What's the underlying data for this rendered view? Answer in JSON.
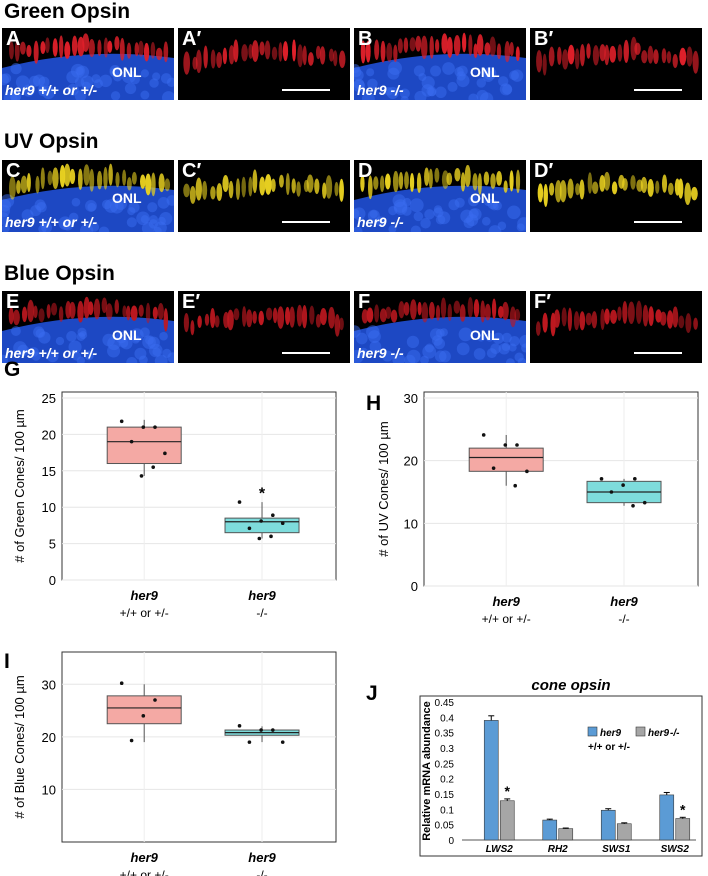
{
  "sections": [
    {
      "title": "Green Opsin"
    },
    {
      "title": "UV Opsin"
    },
    {
      "title": "Blue Opsin"
    }
  ],
  "micro": {
    "onl_label": "ONL",
    "control_genotype": "her9 +/+ or +/-",
    "mutant_genotype": "her9 -/-",
    "panels": [
      {
        "label": "A",
        "stain": "#e0202a"
      },
      {
        "label": "A′",
        "stain": "#e0202a"
      },
      {
        "label": "B",
        "stain": "#e0202a"
      },
      {
        "label": "B′",
        "stain": "#e0202a"
      },
      {
        "label": "C",
        "stain": "#e8d020"
      },
      {
        "label": "C′",
        "stain": "#e8d020"
      },
      {
        "label": "D",
        "stain": "#e8d020"
      },
      {
        "label": "D′",
        "stain": "#e8d020"
      },
      {
        "label": "E",
        "stain": "#c01820"
      },
      {
        "label": "E′",
        "stain": "#c01820"
      },
      {
        "label": "F",
        "stain": "#c01820"
      },
      {
        "label": "F′",
        "stain": "#c01820"
      }
    ],
    "nuclei_color": "#2050d8"
  },
  "chart_data": [
    {
      "panel": "G",
      "type": "box",
      "ylabel": "# of Green Cones/ 100 µm",
      "ylim": [
        0,
        25
      ],
      "yticks": [
        0,
        5,
        10,
        15,
        20,
        25
      ],
      "categories": [
        [
          "her9",
          "+/+ or +/-"
        ],
        [
          "her9",
          "-/-"
        ]
      ],
      "boxes": [
        {
          "whisker_low": 14.3,
          "q1": 16,
          "median": 19,
          "q3": 21,
          "whisker_high": 22,
          "color": "#f4a9a4",
          "points": [
            21.8,
            21,
            21,
            19,
            17.4,
            15.5,
            14.3
          ]
        },
        {
          "whisker_low": 5.7,
          "q1": 6.5,
          "median": 8,
          "q3": 8.5,
          "whisker_high": 10.7,
          "color": "#7edcdc",
          "points": [
            10.7,
            8.9,
            8.1,
            7.1,
            7.8,
            6,
            5.7
          ]
        }
      ],
      "annotations": [
        {
          "text": "*",
          "category": 1,
          "y": 12
        }
      ],
      "grid": true
    },
    {
      "panel": "H",
      "type": "box",
      "ylabel": "# of UV Cones/ 100 µm",
      "ylim": [
        0,
        30
      ],
      "yticks": [
        0,
        10,
        20,
        30
      ],
      "categories": [
        [
          "her9",
          "+/+ or +/-"
        ],
        [
          "her9",
          "-/-"
        ]
      ],
      "boxes": [
        {
          "whisker_low": 16,
          "q1": 18.3,
          "median": 20.5,
          "q3": 22,
          "whisker_high": 24.1,
          "color": "#f4a9a4",
          "points": [
            24.1,
            22.5,
            22.5,
            18.8,
            18.3,
            16
          ]
        },
        {
          "whisker_low": 12.8,
          "q1": 13.3,
          "median": 15,
          "q3": 16.7,
          "whisker_high": 17.1,
          "color": "#7edcdc",
          "points": [
            17.1,
            17.1,
            16.1,
            15,
            13.3,
            12.8
          ]
        }
      ],
      "annotations": [],
      "grid": true
    },
    {
      "panel": "I",
      "type": "box",
      "ylabel": "# of Blue Cones/ 100 µm",
      "ylim": [
        0,
        35
      ],
      "yticks": [
        10,
        20,
        30
      ],
      "categories": [
        [
          "her9",
          "+/+ or +/-"
        ],
        [
          "her9",
          "-/-"
        ]
      ],
      "boxes": [
        {
          "whisker_low": 19,
          "q1": 22.5,
          "median": 25.5,
          "q3": 27.8,
          "whisker_high": 30,
          "color": "#f4a9a4",
          "points": [
            30.2,
            27,
            24,
            19.3
          ]
        },
        {
          "whisker_low": 19,
          "q1": 20.3,
          "median": 20.8,
          "q3": 21.3,
          "whisker_high": 22,
          "color": "#7edcdc",
          "points": [
            22.1,
            21.3,
            21.3,
            19,
            19
          ]
        }
      ],
      "annotations": [],
      "grid": true
    },
    {
      "panel": "J",
      "type": "bar",
      "title": "cone opsin",
      "ylabel": "Relative mRNA abundance",
      "ylim": [
        0,
        0.45
      ],
      "yticks": [
        "0",
        "0.05",
        "0.1",
        "0.15",
        "0.2",
        "0.25",
        "0.3",
        "0.35",
        "0.4",
        "0.45"
      ],
      "categories": [
        "LWS2",
        "RH2",
        "SWS1",
        "SWS2"
      ],
      "series": [
        {
          "name": "her9 +/+ or +/-",
          "color": "#5b9bd5",
          "values": [
            0.39,
            0.065,
            0.097,
            0.147
          ],
          "errors": [
            0.015,
            0.003,
            0.005,
            0.008
          ]
        },
        {
          "name": "her9 -/-",
          "color": "#a6a6a6",
          "values": [
            0.128,
            0.037,
            0.053,
            0.07
          ],
          "errors": [
            0.006,
            0.002,
            0.003,
            0.004
          ]
        }
      ],
      "annotations": [
        {
          "text": "*",
          "category": 0,
          "series": 1
        },
        {
          "text": "*",
          "category": 3,
          "series": 1
        }
      ],
      "legend": "top-right"
    }
  ]
}
